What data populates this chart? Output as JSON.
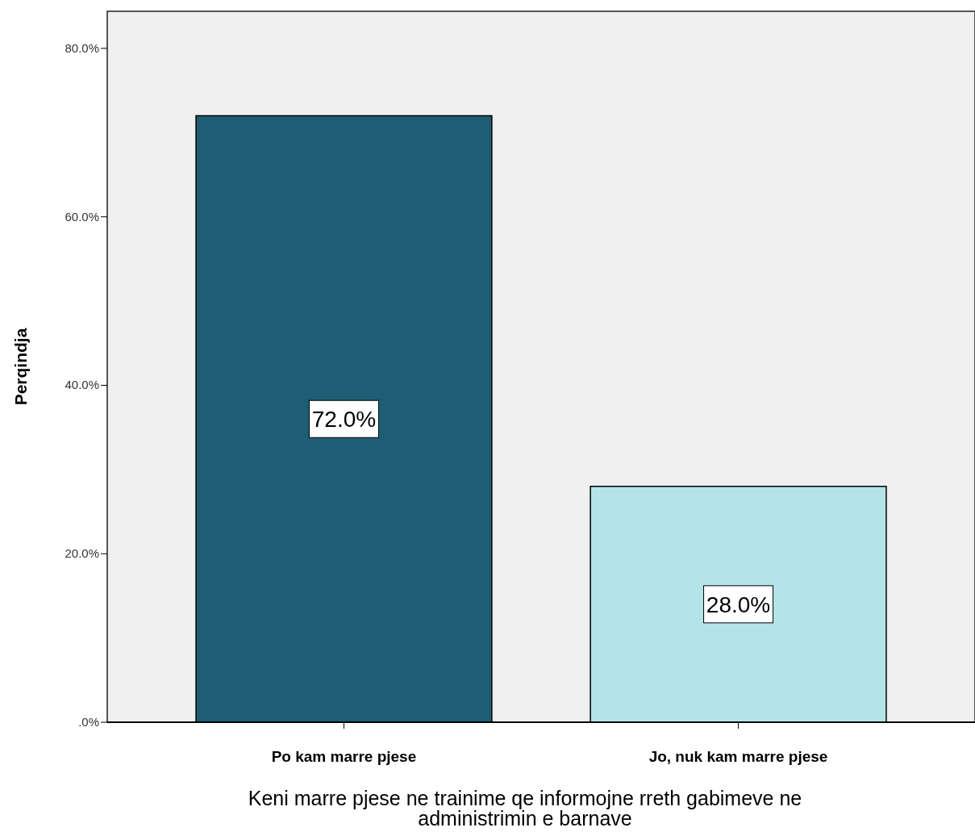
{
  "chart_data": {
    "type": "bar",
    "xlabel": "Keni marre pjese ne trainime qe informojne rreth gabimeve ne administrimin e barnave",
    "ylabel": "Perqindja",
    "categories": [
      "Po kam marre pjese",
      "Jo, nuk kam marre pjese"
    ],
    "values": [
      72.0,
      28.0
    ],
    "colors": [
      "#1d5e74",
      "#b3e5e8"
    ],
    "value_labels": [
      "72.0%",
      "28.0%"
    ],
    "ylim": [
      0,
      84.4
    ],
    "yticks": [
      {
        "value": 0,
        "label": ".0%"
      },
      {
        "value": 20,
        "label": "20.0%"
      },
      {
        "value": 40,
        "label": "40.0%"
      },
      {
        "value": 60,
        "label": "60.0%"
      },
      {
        "value": 80,
        "label": "80.0%"
      }
    ]
  }
}
